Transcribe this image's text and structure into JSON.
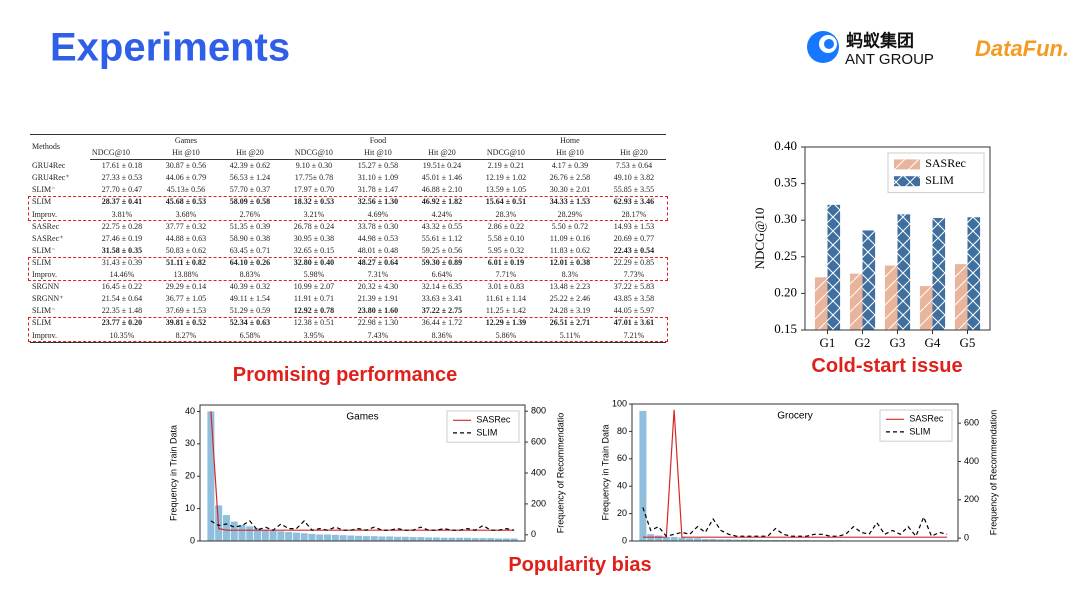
{
  "title": "Experiments",
  "logos": {
    "ant_cn": "蚂蚁集团",
    "ant_en": "ANT GROUP",
    "datafun": "DataFun."
  },
  "table": {
    "methods_header": "Methods",
    "groups": [
      "Games",
      "Food",
      "Home"
    ],
    "metrics": [
      "NDCG@10",
      "Hit @10",
      "Hit @20"
    ],
    "rows": [
      [
        "GRU4Rec",
        "17.61 ± 0.18",
        "30.87 ± 0.56",
        "42.39 ± 0.62",
        "9.10 ± 0.30",
        "15.27 ± 0.58",
        "19.51± 0.24",
        "2.19 ± 0.21",
        "4.17 ± 0.39",
        "7.53 ± 0.64"
      ],
      [
        "GRU4Rec⁺",
        "27.33 ± 0.53",
        "44.06 ± 0.79",
        "56.53 ± 1.24",
        "17.75± 0.78",
        "31.10 ± 1.09",
        "45.01 ± 1.46",
        "12.19 ± 1.02",
        "26.76 ± 2.58",
        "49.10 ± 3.82"
      ],
      [
        "SLIM⁻",
        "27.70 ± 0.47",
        "45.13± 0.56",
        "57.70 ± 0.37",
        "17.97 ± 0.70",
        "31.78 ± 1.47",
        "46.88 ± 2.10",
        "13.59 ± 1.05",
        "30.30 ± 2.01",
        "55.85 ± 3.55"
      ],
      [
        "SLIM",
        "28.37 ± 0.41",
        "45.68 ± 0.53",
        "58.09 ± 0.58",
        "18.32 ± 0.53",
        "32.56 ± 1.30",
        "46.92 ± 1.82",
        "15.64 ± 0.51",
        "34.33 ± 1.53",
        "62.93 ± 3.46"
      ],
      [
        "Improv.",
        "3.81%",
        "3.68%",
        "2.76%",
        "3.21%",
        "4.69%",
        "4.24%",
        "28.3%",
        "28.29%",
        "28.17%"
      ],
      [
        "SASRec",
        "22.75 ± 0.28",
        "37.77 ± 0.32",
        "51.35 ± 0.39",
        "26.78 ± 0.24",
        "33.78 ± 0.30",
        "43.32 ± 0.55",
        "2.86 ± 0.22",
        "5.50 ± 0.72",
        "14.93 ± 1.53"
      ],
      [
        "SASRec⁺",
        "27.46 ± 0.19",
        "44.88 ± 0.63",
        "58.90 ± 0.38",
        "30.95 ± 0.38",
        "44.98 ± 0.53",
        "55.61 ± 1.12",
        "5.58 ± 0.10",
        "11.09 ± 0.16",
        "20.69 ± 0.77"
      ],
      [
        "SLIM⁻",
        "31.58 ± 0.35",
        "50.83 ± 0.62",
        "63.45 ± 0.71",
        "32.65 ± 0.15",
        "48.01 ± 0.48",
        "59.25 ± 0.56",
        "5.95 ± 0.32",
        "11.83 ± 0.62",
        "22.43 ± 0.54"
      ],
      [
        "SLIM",
        "31.43 ± 0.39",
        "51.11 ± 0.82",
        "64.10 ± 0.26",
        "32.80 ± 0.40",
        "48.27 ± 0.64",
        "59.30 ± 0.89",
        "6.01 ± 0.19",
        "12.01 ± 0.38",
        "22.29 ± 0.85"
      ],
      [
        "Improv.",
        "14.46%",
        "13.88%",
        "8.83%",
        "5.98%",
        "7.31%",
        "6.64%",
        "7.71%",
        "8.3%",
        "7.73%"
      ],
      [
        "SRGNN",
        "16.45 ± 0.22",
        "29.29 ± 0.14",
        "40.39 ± 0.32",
        "10.99 ± 2.07",
        "20.32 ± 4.30",
        "32.14 ± 6.35",
        "3.01 ± 0.83",
        "13.48 ± 2.23",
        "37.22 ± 5.83"
      ],
      [
        "SRGNN⁺",
        "21.54 ± 0.64",
        "36.77 ± 1.05",
        "49.11 ± 1.54",
        "11.91 ± 0.71",
        "21.39 ± 1.91",
        "33.63 ± 3.41",
        "11.61 ± 1.14",
        "25.22 ± 2.46",
        "43.85 ± 3.58"
      ],
      [
        "SLIM⁻",
        "22.35 ± 1.48",
        "37.69 ± 1.53",
        "51.29 ± 0.59",
        "12.92 ± 0.78",
        "23.80 ± 1.60",
        "37.22 ± 2.75",
        "11.25 ± 1.42",
        "24.28 ± 3.19",
        "44.05 ± 5.97"
      ],
      [
        "SLIM",
        "23.77 ± 0.20",
        "39.81 ± 0.52",
        "52.34 ± 0.63",
        "12.38 ± 0.51",
        "22.98 ± 1.30",
        "36.44 ± 1.72",
        "12.29 ± 1.39",
        "26.51 ± 2.71",
        "47.01 ± 3.61"
      ],
      [
        "Improv.",
        "10.35%",
        "8.27%",
        "6.58%",
        "3.95%",
        "7.43%",
        "8.36%",
        "5.86%",
        "5.11%",
        "7.21%"
      ]
    ],
    "bold": [
      [],
      [],
      [],
      [
        1,
        2,
        3,
        4,
        5,
        6,
        7,
        8,
        9
      ],
      [],
      [],
      [],
      [
        1,
        9
      ],
      [
        2,
        3,
        4,
        5,
        6,
        7,
        8
      ],
      [],
      [],
      [],
      [
        4,
        5,
        6
      ],
      [
        1,
        2,
        3,
        7,
        8,
        9
      ],
      []
    ],
    "boxed_rows": [
      3,
      8,
      13
    ]
  },
  "captions": [
    "Promising performance",
    "Cold-start issue",
    "Popularity bias"
  ],
  "chart_data": [
    {
      "type": "bar",
      "y_label": "NDCG@10",
      "categories": [
        "G1",
        "G2",
        "G3",
        "G4",
        "G5"
      ],
      "series": [
        {
          "name": "SASRec",
          "color": "#e9b49c",
          "values": [
            0.222,
            0.227,
            0.238,
            0.21,
            0.24
          ]
        },
        {
          "name": "SLIM",
          "color": "#3f6f9f",
          "values": [
            0.321,
            0.286,
            0.308,
            0.303,
            0.304
          ]
        }
      ],
      "ylim": [
        0.15,
        0.4
      ],
      "yticks": [
        {
          "value": 0.15,
          "label": "0.15"
        },
        {
          "value": 0.2,
          "label": "0.20"
        },
        {
          "value": 0.25,
          "label": "0.25"
        },
        {
          "value": 0.3,
          "label": "0.30"
        },
        {
          "value": 0.35,
          "label": "0.35"
        },
        {
          "value": 0.4,
          "label": "0.40"
        }
      ],
      "hatch": true,
      "legend": "upper right"
    },
    {
      "type": "bar_line",
      "title": "Games",
      "y_label": "Frequency in Train Data",
      "y2_label": "Frequency of Recommendatio",
      "series": [
        {
          "kind": "bar",
          "color": "#8fbfdc",
          "values": [
            40,
            11,
            8,
            6,
            5,
            4.5,
            4,
            3.5,
            3.2,
            3,
            2.8,
            2.6,
            2.4,
            2.2,
            2,
            2,
            1.9,
            1.8,
            1.7,
            1.6,
            1.5,
            1.5,
            1.4,
            1.4,
            1.3,
            1.3,
            1.2,
            1.2,
            1.1,
            1.1,
            1,
            1,
            1,
            1,
            0.9,
            0.9,
            0.9,
            0.8,
            0.8,
            0.8
          ]
        },
        {
          "name": "SASRec",
          "kind": "line",
          "axis": "y2",
          "color": "#d62728",
          "values": [
            800,
            40,
            30,
            30,
            30,
            30,
            30,
            30,
            30,
            30,
            30,
            30,
            30,
            30,
            30,
            30,
            30,
            30,
            30,
            30,
            30,
            30,
            30,
            30,
            30,
            30,
            30,
            30,
            30,
            30,
            30,
            30,
            30,
            30,
            30,
            30,
            30,
            30,
            30,
            30
          ]
        },
        {
          "name": "SLIM",
          "kind": "line",
          "axis": "y2",
          "dash": true,
          "color": "#000000",
          "values": [
            90,
            60,
            70,
            50,
            60,
            90,
            30,
            50,
            30,
            70,
            40,
            40,
            90,
            30,
            40,
            30,
            50,
            30,
            30,
            40,
            30,
            50,
            30,
            30,
            40,
            30,
            30,
            50,
            30,
            30,
            40,
            30,
            30,
            40,
            30,
            60,
            30,
            30,
            40,
            30
          ]
        }
      ],
      "ylim": [
        0,
        42
      ],
      "yticks": [
        0,
        10,
        20,
        30,
        40
      ],
      "y2lim": [
        -40,
        840
      ],
      "y2ticks": [
        0,
        200,
        400,
        600,
        800
      ],
      "legend": "upper right"
    },
    {
      "type": "bar_line",
      "title": "Grocery",
      "y_label": "Frequency in Train Data",
      "y2_label": "Frequency of Recommendation",
      "series": [
        {
          "kind": "bar",
          "color": "#8fbfdc",
          "values": [
            95,
            5,
            4,
            3,
            3,
            2.5,
            2,
            2,
            1.5,
            1.5,
            1.2,
            1.2,
            1,
            1,
            1,
            0.8,
            0.8,
            0.8,
            0.7,
            0.7,
            0.6,
            0.6,
            0.5,
            0.5,
            0.5,
            0.5,
            0.4,
            0.4,
            0.4,
            0.4,
            0.3,
            0.3,
            0.3,
            0.3,
            0.3,
            0.2,
            0.2,
            0.2,
            0.2,
            0.2
          ]
        },
        {
          "name": "SASRec",
          "kind": "line",
          "axis": "y2",
          "color": "#d62728",
          "values": [
            5,
            5,
            5,
            5,
            670,
            5,
            5,
            5,
            5,
            5,
            5,
            5,
            5,
            5,
            5,
            5,
            5,
            5,
            5,
            5,
            5,
            5,
            5,
            5,
            5,
            5,
            5,
            5,
            5,
            5,
            5,
            5,
            5,
            5,
            5,
            5,
            5,
            5,
            5,
            5
          ]
        },
        {
          "name": "SLIM",
          "kind": "line",
          "axis": "y2",
          "dash": true,
          "color": "#000000",
          "values": [
            160,
            40,
            60,
            10,
            20,
            30,
            20,
            60,
            30,
            100,
            40,
            20,
            10,
            10,
            10,
            10,
            10,
            50,
            20,
            10,
            10,
            10,
            20,
            20,
            10,
            10,
            20,
            60,
            30,
            20,
            80,
            20,
            40,
            20,
            60,
            10,
            110,
            10,
            30,
            20
          ]
        }
      ],
      "ylim": [
        0,
        100
      ],
      "yticks": [
        0,
        20,
        40,
        60,
        80,
        100
      ],
      "y2lim": [
        -15,
        700
      ],
      "y2ticks": [
        0,
        200,
        400,
        600
      ],
      "legend": "upper right"
    }
  ]
}
